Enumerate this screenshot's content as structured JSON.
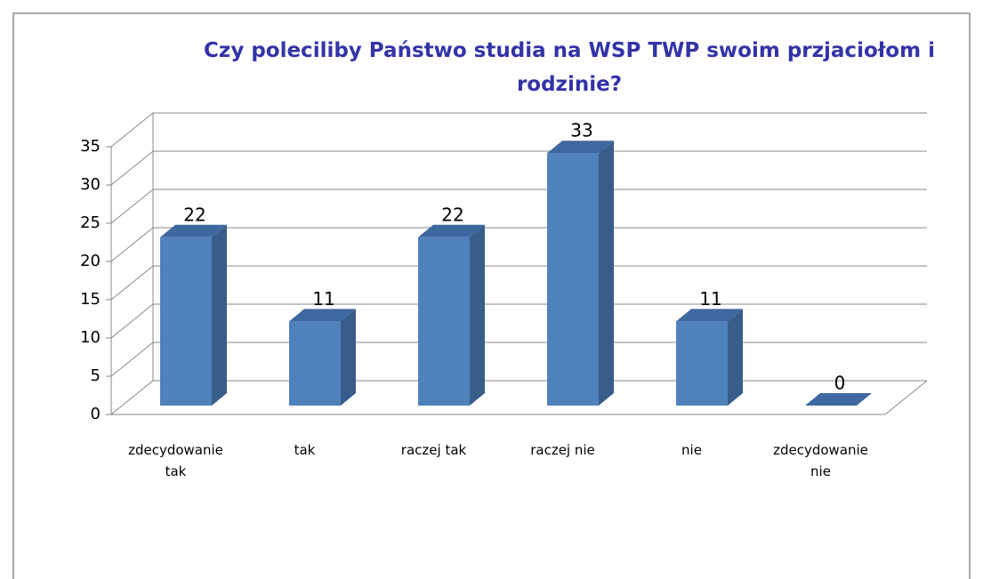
{
  "chart_data": {
    "type": "bar3d",
    "title": "Czy poleciliby Państwo studia na WSP TWP swoim przjaciołom i rodzinie?",
    "categories": [
      "zdecydowanie tak",
      "tak",
      "raczej tak",
      "raczej nie",
      "nie",
      "zdecydowanie nie"
    ],
    "values": [
      22,
      11,
      22,
      33,
      11,
      0
    ],
    "color": "#4f81bd",
    "ylim": [
      0,
      35
    ],
    "yticks": [
      0,
      5,
      10,
      15,
      20,
      25,
      30,
      35
    ],
    "grid": true
  }
}
